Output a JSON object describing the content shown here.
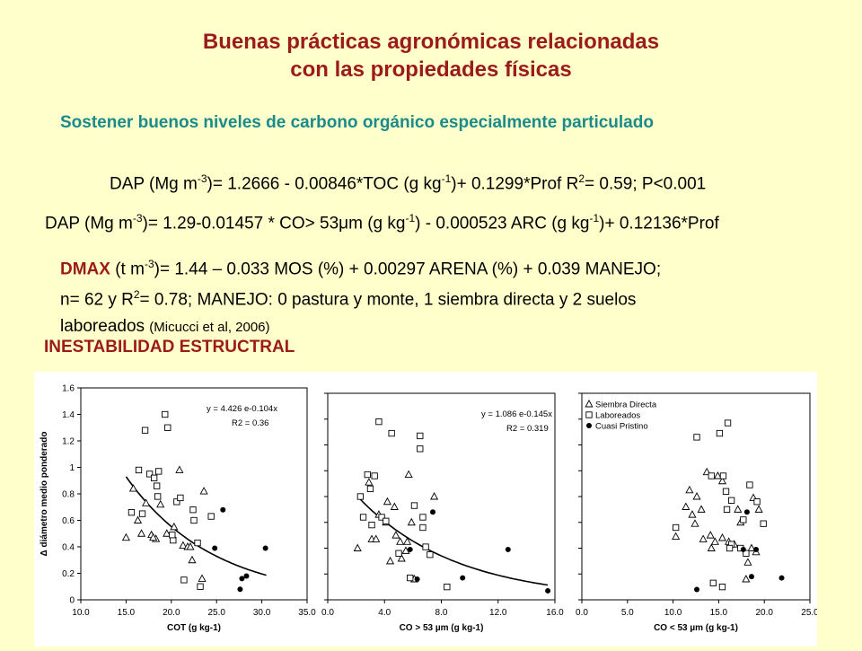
{
  "title_line1": "Buenas prácticas agronómicas relacionadas",
  "title_line2": "con las propiedades físicas",
  "subtitle": "Sostener buenos niveles de carbono orgánico especialmente particulado",
  "eq1": {
    "a": "DAP (Mg m",
    "sup1": "-3",
    "b": ")= 1.2666 - 0.00846*TOC (g kg",
    "sup2": "-1",
    "c": ")+  0.1299*Prof R",
    "sup3": "2",
    "d": "= 0.59; P<0.001"
  },
  "eq2": {
    "a": "DAP (Mg m",
    "sup1": "-3",
    "b": ")= 1.29-0.01457 * CO> 53μm (g kg",
    "sup2": "-1",
    "c": ") - 0.000523 ARC (g kg",
    "sup3": "-1",
    "d": ")+ 0.12136*Prof"
  },
  "dmax": {
    "label": "DMAX",
    "a": " (t m",
    "sup1": "-3",
    "b": ")= 1.44 – 0.033 MOS (%) + 0.00297 ARENA (%) + 0.039 MANEJO;",
    "line2a": " n= 62 y R",
    "sup2": "2",
    "line2b": "= 0.78; MANEJO: 0 pastura y monte, 1 siembra directa y 2 suelos",
    "line3": "laboreados ",
    "cite": "(Micucci et al, 2006)"
  },
  "section": "INESTABILIDAD ESTRUCTRAL",
  "chart_data": [
    {
      "type": "scatter",
      "xlabel": "COT (g kg-1)",
      "ylabel": "Δ diámetro medio ponderado",
      "xlim": [
        10,
        35
      ],
      "ylim": [
        0,
        1.6
      ],
      "xticks": [
        "10.0",
        "15.0",
        "20.0",
        "25.0",
        "30.0",
        "35.0"
      ],
      "yticks": [
        "0",
        "0.2",
        "0.4",
        "0.6",
        "0.8",
        "1",
        "1.2",
        "1.4",
        "1.6"
      ],
      "annotation": {
        "eq": "y = 4.426 e-0.104x",
        "r2": "R2 = 0.36"
      },
      "curve": {
        "a": 4.426,
        "b": -0.104,
        "xrange": [
          15.0,
          30.5
        ]
      },
      "series": [
        {
          "marker": "triangle",
          "points": [
            [
              15,
              0.47
            ],
            [
              15.8,
              0.84
            ],
            [
              16.3,
              0.6
            ],
            [
              16.7,
              0.5
            ],
            [
              17.2,
              0.73
            ],
            [
              17.8,
              0.49
            ],
            [
              18.3,
              0.46
            ],
            [
              18.8,
              0.72
            ],
            [
              19.5,
              0.5
            ],
            [
              20.3,
              0.55
            ],
            [
              20.9,
              0.98
            ],
            [
              21.3,
              0.41
            ],
            [
              21.8,
              0.4
            ],
            [
              22.3,
              0.3
            ],
            [
              23.4,
              0.16
            ],
            [
              23.6,
              0.82
            ],
            [
              22.1,
              0.4
            ],
            [
              18,
              0.47
            ]
          ]
        },
        {
          "marker": "square",
          "points": [
            [
              15.6,
              0.66
            ],
            [
              16.4,
              0.98
            ],
            [
              17.1,
              1.28
            ],
            [
              17.6,
              0.95
            ],
            [
              18.1,
              0.92
            ],
            [
              18.4,
              0.86
            ],
            [
              18.6,
              0.97
            ],
            [
              18.5,
              0.78
            ],
            [
              19.3,
              1.4
            ],
            [
              19.6,
              1.3
            ],
            [
              20.2,
              0.45
            ],
            [
              20.6,
              0.74
            ],
            [
              21,
              0.77
            ],
            [
              21.4,
              0.15
            ],
            [
              22.4,
              0.68
            ],
            [
              22.5,
              0.6
            ],
            [
              22.9,
              0.43
            ],
            [
              23.2,
              0.1
            ],
            [
              24.4,
              0.63
            ],
            [
              20.1,
              0.49
            ],
            [
              16.8,
              0.65
            ]
          ]
        },
        {
          "marker": "circle",
          "points": [
            [
              24.8,
              0.39
            ],
            [
              25.7,
              0.68
            ],
            [
              27.6,
              0.08
            ],
            [
              27.8,
              0.16
            ],
            [
              28.3,
              0.18
            ],
            [
              30.4,
              0.39
            ]
          ]
        }
      ]
    },
    {
      "type": "scatter",
      "xlabel": "CO > 53 µm (g kg-1)",
      "xlim": [
        0,
        16
      ],
      "ylim": [
        0,
        1.6
      ],
      "xticks": [
        "0.0",
        "4.0",
        "8.0",
        "12.0",
        "16.0"
      ],
      "annotation": {
        "eq": "y = 1.086 e-0.145x",
        "r2": "R2 = 0.319"
      },
      "curve": {
        "a": 1.086,
        "b": -0.145,
        "xrange": [
          2.3,
          15.5
        ]
      },
      "series": [
        {
          "marker": "triangle",
          "points": [
            [
              2.1,
              0.4
            ],
            [
              2.9,
              0.91
            ],
            [
              3.1,
              0.47
            ],
            [
              3.4,
              0.47
            ],
            [
              3.6,
              0.66
            ],
            [
              4.1,
              0.6
            ],
            [
              4.2,
              0.76
            ],
            [
              4.4,
              0.3
            ],
            [
              4.7,
              0.72
            ],
            [
              4.8,
              0.5
            ],
            [
              5.1,
              0.45
            ],
            [
              5.2,
              0.32
            ],
            [
              5.5,
              0.38
            ],
            [
              5.7,
              0.97
            ],
            [
              5.9,
              0.6
            ],
            [
              6.1,
              0.16
            ],
            [
              7.5,
              0.8
            ],
            [
              5.6,
              0.45
            ]
          ]
        },
        {
          "marker": "square",
          "points": [
            [
              2.3,
              0.8
            ],
            [
              2.5,
              0.64
            ],
            [
              2.8,
              0.97
            ],
            [
              3,
              0.86
            ],
            [
              3.1,
              0.58
            ],
            [
              3.3,
              0.96
            ],
            [
              3.6,
              1.38
            ],
            [
              3.8,
              0.64
            ],
            [
              4.1,
              0.61
            ],
            [
              4.5,
              1.29
            ],
            [
              5,
              0.36
            ],
            [
              6.1,
              0.73
            ],
            [
              6.5,
              1.27
            ],
            [
              6.5,
              1.17
            ],
            [
              6.7,
              0.64
            ],
            [
              6.9,
              0.41
            ],
            [
              7.2,
              0.35
            ],
            [
              8.4,
              0.1
            ],
            [
              6.7,
              0.56
            ],
            [
              5.8,
              0.17
            ]
          ]
        },
        {
          "marker": "circle",
          "points": [
            [
              5.8,
              0.39
            ],
            [
              6.3,
              0.16
            ],
            [
              7.4,
              0.68
            ],
            [
              9.5,
              0.17
            ],
            [
              12.7,
              0.39
            ],
            [
              15.5,
              0.07
            ]
          ]
        }
      ]
    },
    {
      "type": "scatter",
      "xlabel": "CO < 53 µm (g kg-1)",
      "xlim": [
        0,
        25
      ],
      "ylim": [
        0,
        1.6
      ],
      "xticks": [
        "0.0",
        "5.0",
        "10.0",
        "15.0",
        "20.0",
        "25.0"
      ],
      "legend": {
        "position": "top-left",
        "entries": [
          "Siembra Directa",
          "Laboreados",
          "Cuasi Pristino"
        ]
      },
      "series": [
        {
          "name": "Siembra Directa",
          "marker": "triangle",
          "points": [
            [
              10.3,
              0.49
            ],
            [
              11.4,
              0.72
            ],
            [
              11.8,
              0.85
            ],
            [
              12.1,
              0.66
            ],
            [
              12.4,
              0.59
            ],
            [
              12.6,
              0.8
            ],
            [
              13.1,
              0.7
            ],
            [
              13.3,
              0.47
            ],
            [
              13.7,
              0.99
            ],
            [
              14.1,
              0.5
            ],
            [
              14.6,
              0.45
            ],
            [
              14.9,
              0.96
            ],
            [
              15.4,
              0.48
            ],
            [
              16.1,
              0.45
            ],
            [
              16.7,
              0.43
            ],
            [
              17.1,
              0.7
            ],
            [
              17.4,
              0.6
            ],
            [
              18,
              0.16
            ],
            [
              18.2,
              0.29
            ],
            [
              18.6,
              0.4
            ],
            [
              18.8,
              0.79
            ],
            [
              19.1,
              0.37
            ],
            [
              19.4,
              0.7
            ],
            [
              14.2,
              0.4
            ],
            [
              15.4,
              0.92
            ]
          ]
        },
        {
          "name": "Laboreados",
          "marker": "square",
          "points": [
            [
              10.3,
              0.56
            ],
            [
              12.6,
              1.26
            ],
            [
              14.2,
              0.96
            ],
            [
              14.4,
              0.13
            ],
            [
              15.1,
              1.29
            ],
            [
              15.4,
              0.1
            ],
            [
              15.5,
              0.96
            ],
            [
              15.8,
              0.84
            ],
            [
              16,
              1.37
            ],
            [
              16.4,
              0.77
            ],
            [
              16.4,
              0.43
            ],
            [
              17.7,
              0.62
            ],
            [
              17.4,
              0.4
            ],
            [
              18,
              0.36
            ],
            [
              18.4,
              0.89
            ],
            [
              19.2,
              0.76
            ],
            [
              19.9,
              0.59
            ],
            [
              15.9,
              0.7
            ],
            [
              16.2,
              0.4
            ]
          ]
        },
        {
          "name": "Cuasi Pristino",
          "marker": "circle",
          "points": [
            [
              12.6,
              0.08
            ],
            [
              17.7,
              0.39
            ],
            [
              18.1,
              0.68
            ],
            [
              18.6,
              0.18
            ],
            [
              19.1,
              0.39
            ],
            [
              21.9,
              0.17
            ]
          ]
        }
      ]
    }
  ]
}
